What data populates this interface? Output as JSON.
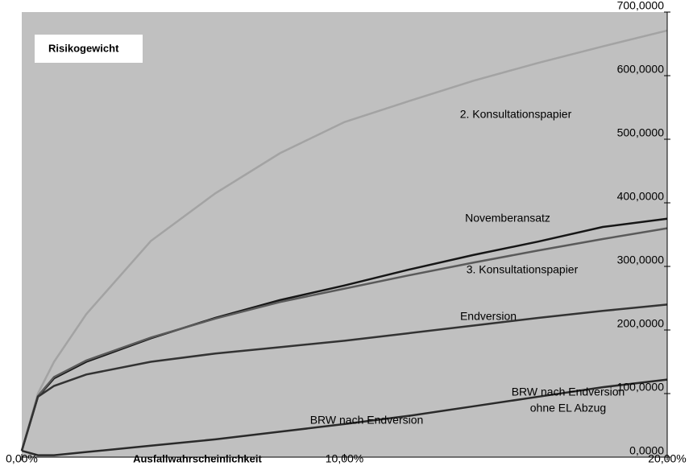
{
  "chart_data": {
    "type": "line",
    "title": "Risikogewicht",
    "x_label": "Ausfallwahrscheinlichkeit",
    "x": [
      0,
      0.5,
      1,
      2,
      4,
      6,
      8,
      10,
      12,
      14,
      16,
      18,
      20
    ],
    "series": [
      {
        "color": "#a3a3a3",
        "values": [
          10,
          100,
          150,
          225,
          340,
          415,
          478,
          527,
          560,
          592,
          620,
          646,
          671
        ]
      },
      {
        "color": "#161616",
        "values": [
          10,
          95,
          124,
          150,
          187,
          219,
          247,
          270,
          295,
          318,
          339,
          362,
          375
        ]
      },
      {
        "color": "#5a5a5a",
        "values": [
          10,
          96,
          126,
          152,
          188,
          218,
          244,
          265,
          286,
          306,
          325,
          343,
          360
        ]
      },
      {
        "color": "#333333",
        "values": [
          10,
          95,
          112,
          130,
          150,
          163,
          173,
          183,
          195,
          207,
          219,
          230,
          240
        ]
      },
      {
        "color": "#2a2a2a",
        "values": [
          10,
          3,
          3,
          8,
          18,
          28,
          40,
          52,
          65,
          80,
          95,
          110,
          122
        ]
      }
    ],
    "annotations": [
      "2. Konsultationspapier",
      "Novemberansatz",
      "3. Konsultationspapier",
      "Endversion",
      "BRW nach Endversion",
      "ohne EL Abzug",
      "BRW nach Endversion"
    ],
    "xlim": [
      0,
      20
    ],
    "xticks": [
      {
        "value": 0,
        "label": "0,00%"
      },
      {
        "value": 10,
        "label": "10,00%"
      },
      {
        "value": 20,
        "label": "20,00%"
      }
    ],
    "ylim": [
      0,
      700
    ],
    "yticks": [
      {
        "value": 0,
        "label": "0,0000"
      },
      {
        "value": 100,
        "label": "100,0000"
      },
      {
        "value": 200,
        "label": "200,0000"
      },
      {
        "value": 300,
        "label": "300,0000"
      },
      {
        "value": 400,
        "label": "400,0000"
      },
      {
        "value": 500,
        "label": "500,0000"
      },
      {
        "value": 600,
        "label": "600,0000"
      },
      {
        "value": 700,
        "label": "700,0000"
      }
    ],
    "background": "#c0c0c0"
  }
}
